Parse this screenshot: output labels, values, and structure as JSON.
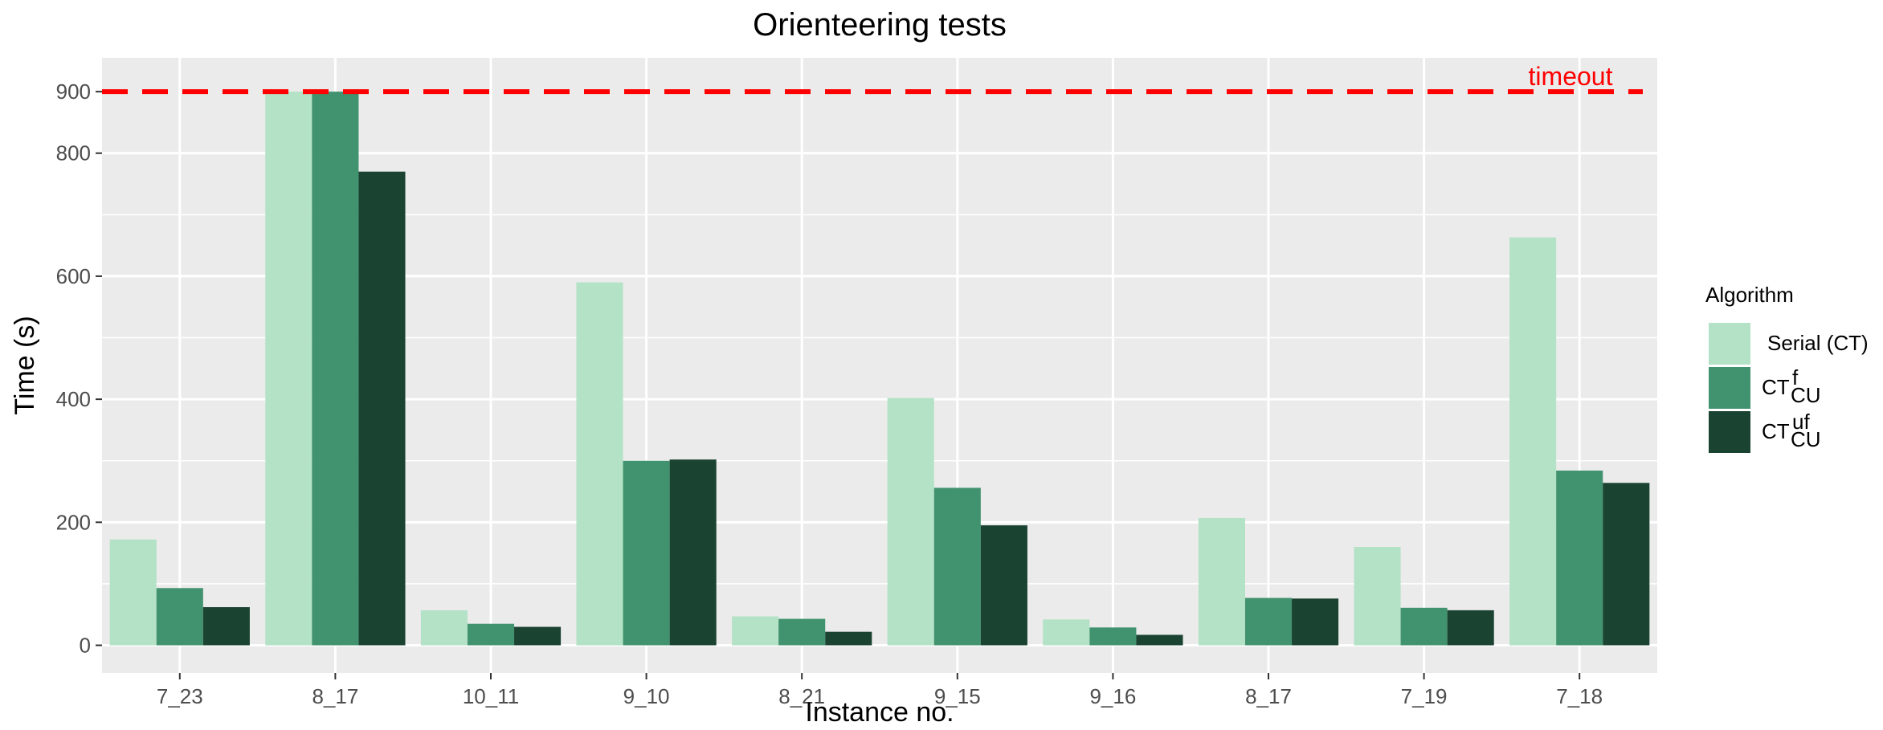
{
  "chart_data": {
    "type": "bar",
    "title": "Orienteering tests",
    "xlabel": "Instance no.",
    "ylabel": "Time (s)",
    "categories": [
      "7_23",
      "8_17",
      "10_11",
      "9_10",
      "8_21",
      "9_15",
      "9_16",
      "8_17",
      "7_19",
      "7_18"
    ],
    "ylim": [
      -45,
      955
    ],
    "yticks": [
      0,
      200,
      400,
      600,
      800,
      900
    ],
    "grid": true,
    "legend": {
      "title": "Algorithm",
      "placement": "right",
      "entries": [
        {
          "base": "Serial (CT)",
          "sup": "",
          "sub": ""
        },
        {
          "base": "CT",
          "sup": "f",
          "sub": "CU"
        },
        {
          "base": "CT",
          "sup": "uf",
          "sub": "CU"
        }
      ]
    },
    "series": [
      {
        "color": "#b3e2c6",
        "values": [
          172,
          900,
          57,
          590,
          47,
          402,
          42,
          207,
          160,
          663
        ]
      },
      {
        "color": "#41926e",
        "values": [
          93,
          900,
          35,
          300,
          43,
          256,
          29,
          77,
          61,
          284
        ]
      },
      {
        "color": "#1b4332",
        "values": [
          62,
          770,
          30,
          302,
          22,
          195,
          17,
          76,
          57,
          264
        ]
      }
    ],
    "reference_line": {
      "value": 900,
      "label": "timeout",
      "color": "#ff0000"
    },
    "panel_color": "#ebebeb"
  }
}
